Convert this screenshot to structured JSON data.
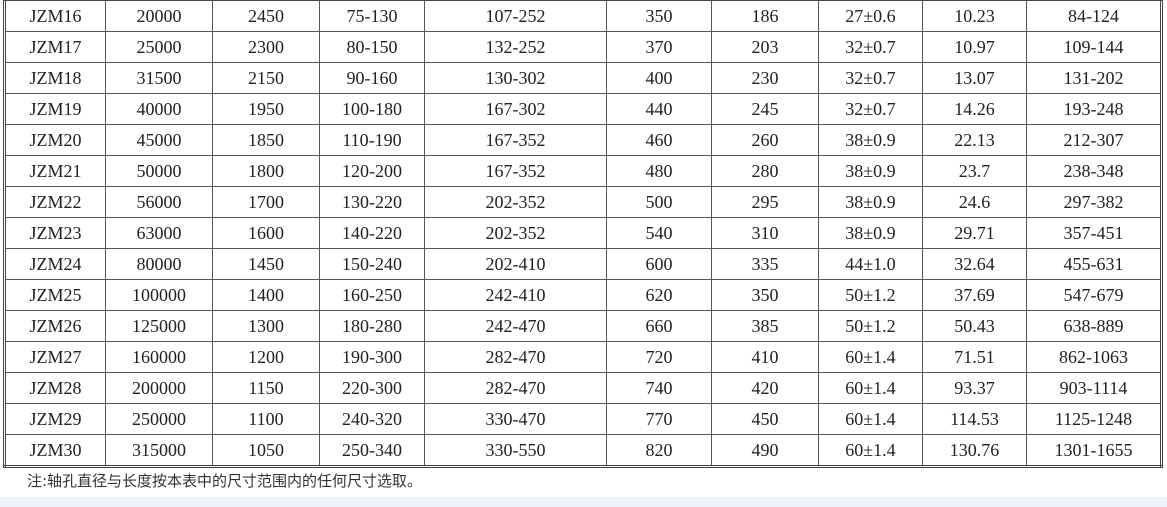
{
  "table": {
    "rows": [
      [
        "JZM16",
        "20000",
        "2450",
        "75-130",
        "107-252",
        "350",
        "186",
        "27±0.6",
        "10.23",
        "84-124"
      ],
      [
        "JZM17",
        "25000",
        "2300",
        "80-150",
        "132-252",
        "370",
        "203",
        "32±0.7",
        "10.97",
        "109-144"
      ],
      [
        "JZM18",
        "31500",
        "2150",
        "90-160",
        "130-302",
        "400",
        "230",
        "32±0.7",
        "13.07",
        "131-202"
      ],
      [
        "JZM19",
        "40000",
        "1950",
        "100-180",
        "167-302",
        "440",
        "245",
        "32±0.7",
        "14.26",
        "193-248"
      ],
      [
        "JZM20",
        "45000",
        "1850",
        "110-190",
        "167-352",
        "460",
        "260",
        "38±0.9",
        "22.13",
        "212-307"
      ],
      [
        "JZM21",
        "50000",
        "1800",
        "120-200",
        "167-352",
        "480",
        "280",
        "38±0.9",
        "23.7",
        "238-348"
      ],
      [
        "JZM22",
        "56000",
        "1700",
        "130-220",
        "202-352",
        "500",
        "295",
        "38±0.9",
        "24.6",
        "297-382"
      ],
      [
        "JZM23",
        "63000",
        "1600",
        "140-220",
        "202-352",
        "540",
        "310",
        "38±0.9",
        "29.71",
        "357-451"
      ],
      [
        "JZM24",
        "80000",
        "1450",
        "150-240",
        "202-410",
        "600",
        "335",
        "44±1.0",
        "32.64",
        "455-631"
      ],
      [
        "JZM25",
        "100000",
        "1400",
        "160-250",
        "242-410",
        "620",
        "350",
        "50±1.2",
        "37.69",
        "547-679"
      ],
      [
        "JZM26",
        "125000",
        "1300",
        "180-280",
        "242-470",
        "660",
        "385",
        "50±1.2",
        "50.43",
        "638-889"
      ],
      [
        "JZM27",
        "160000",
        "1200",
        "190-300",
        "282-470",
        "720",
        "410",
        "60±1.4",
        "71.51",
        "862-1063"
      ],
      [
        "JZM28",
        "200000",
        "1150",
        "220-300",
        "282-470",
        "740",
        "420",
        "60±1.4",
        "93.37",
        "903-1114"
      ],
      [
        "JZM29",
        "250000",
        "1100",
        "240-320",
        "330-470",
        "770",
        "450",
        "60±1.4",
        "114.53",
        "1125-1248"
      ],
      [
        "JZM30",
        "315000",
        "1050",
        "250-340",
        "330-550",
        "820",
        "490",
        "60±1.4",
        "130.76",
        "1301-1655"
      ]
    ]
  },
  "note": "注:轴孔直径与长度按本表中的尺寸范围内的任何尺寸选取。",
  "colors": {
    "band": "#edf2fb",
    "border": "#444444"
  }
}
